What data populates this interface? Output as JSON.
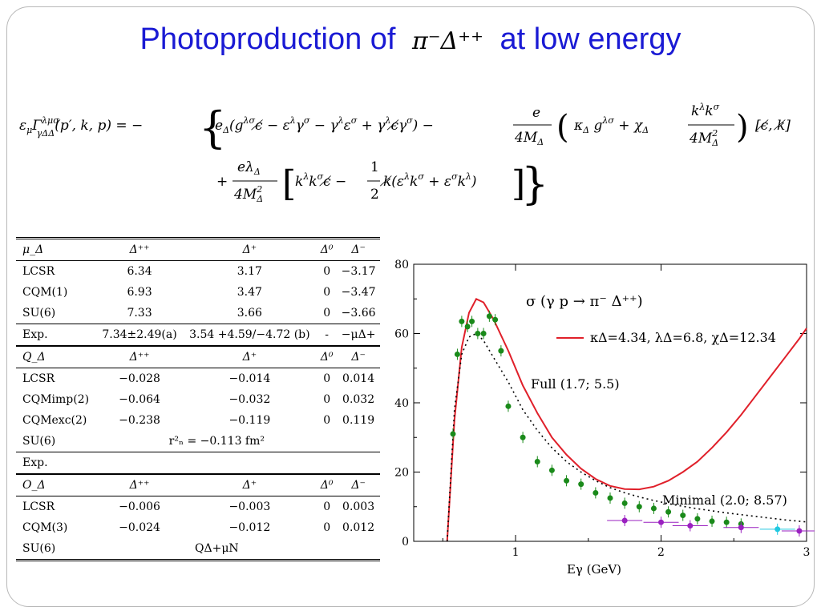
{
  "slide": {
    "title_text_before": "Photoproduction of",
    "title_math": "π⁻Δ⁺⁺",
    "title_text_after": "at low energy"
  },
  "formula": {
    "line1_lhs": "ε_μ Γ^{λμσ}_{γΔΔ}(p′, k, p) = −",
    "line1_rhs": "e_Δ(g^{λσ}ϵ̸ − ε^λ γ^σ − γ^λ ε^σ + γ^λ ϵ̸ γ^σ) − e/(4M_Δ) (κ_Δ g^{λσ} + χ_Δ k^λ k^σ/(4M_Δ²)) [ϵ̸, k̸]",
    "line2": "+ eλ_Δ/(4M_Δ²) [k^λ k^σ ϵ̸ − ½ k̸(ε^λ k^σ + ε^σ k^λ)]"
  },
  "table": {
    "sections": [
      {
        "header": [
          "μ_Δ",
          "Δ⁺⁺",
          "Δ⁺",
          "Δ⁰",
          "Δ⁻"
        ],
        "rows": [
          [
            "LCSR",
            "6.34",
            "3.17",
            "0",
            "−3.17"
          ],
          [
            "CQM(1)",
            "6.93",
            "3.47",
            "0",
            "−3.47"
          ],
          [
            "SU(6)",
            "7.33",
            "3.66",
            "0",
            "−3.66"
          ]
        ],
        "exp": [
          "Exp.",
          "7.34±2.49(a)",
          "3.54 +4.59/−4.72 (b)",
          "-",
          "−μΔ+"
        ]
      },
      {
        "header": [
          "Q_Δ",
          "Δ⁺⁺",
          "Δ⁺",
          "Δ⁰",
          "Δ⁻"
        ],
        "rows": [
          [
            "LCSR",
            "−0.028",
            "−0.014",
            "0",
            "0.014"
          ],
          [
            "CQMimp(2)",
            "−0.064",
            "−0.032",
            "0",
            "0.032"
          ],
          [
            "CQMexc(2)",
            "−0.238",
            "−0.119",
            "0",
            "0.119"
          ]
        ],
        "su6": [
          "SU(6)",
          "r²ₙ = −0.113 fm²"
        ],
        "exp": [
          "Exp."
        ]
      },
      {
        "header": [
          "O_Δ",
          "Δ⁺⁺",
          "Δ⁺",
          "Δ⁰",
          "Δ⁻"
        ],
        "rows": [
          [
            "LCSR",
            "−0.006",
            "−0.003",
            "0",
            "0.003"
          ],
          [
            "CQM(3)",
            "−0.024",
            "−0.012",
            "0",
            "0.012"
          ]
        ],
        "su6": [
          "SU(6)",
          "QΔ+μN"
        ]
      }
    ]
  },
  "chart_data": {
    "type": "line",
    "title": "σ (γ p → π⁻ Δ⁺⁺)",
    "xlabel": "Eγ (GeV)",
    "ylabel": "",
    "xlim": [
      0.3,
      3.0
    ],
    "ylim": [
      0,
      80
    ],
    "xticks": [
      "1",
      "2",
      "3"
    ],
    "yticks": [
      "0",
      "20",
      "40",
      "60",
      "80"
    ],
    "legend": "κΔ=4.34, λΔ=6.8, χΔ=12.34",
    "annotations": [
      "Full  (1.7; 5.5)",
      "Minimal (2.0; 8.57)"
    ],
    "series": [
      {
        "name": "κΔ=4.34, λΔ=6.8, χΔ=12.34",
        "style": "solid",
        "color": "#e0202a",
        "x": [
          0.53,
          0.58,
          0.63,
          0.68,
          0.73,
          0.78,
          0.85,
          0.95,
          1.05,
          1.15,
          1.25,
          1.35,
          1.45,
          1.55,
          1.65,
          1.75,
          1.85,
          1.95,
          2.05,
          2.15,
          2.25,
          2.35,
          2.45,
          2.55,
          2.65,
          2.75,
          2.85,
          2.95,
          3.0
        ],
        "y": [
          0,
          35,
          56,
          66,
          70,
          69,
          64,
          55,
          45,
          37,
          30,
          25,
          21,
          18,
          16,
          15.1,
          15,
          15.8,
          17.5,
          20,
          23,
          27,
          31.5,
          36.5,
          42,
          47.5,
          53,
          58.5,
          61.5
        ]
      },
      {
        "name": "Minimal",
        "style": "dotted",
        "color": "#000000",
        "x": [
          0.53,
          0.58,
          0.63,
          0.68,
          0.73,
          0.78,
          0.85,
          0.95,
          1.05,
          1.15,
          1.25,
          1.35,
          1.45,
          1.55,
          1.65,
          1.75,
          1.85,
          1.95,
          2.05,
          2.15,
          2.25,
          2.35,
          2.45,
          2.55,
          2.65,
          2.75,
          2.85,
          2.95,
          3.0
        ],
        "y": [
          0,
          38,
          54,
          59,
          60,
          58,
          53,
          46,
          38,
          32,
          27,
          23,
          20,
          17.5,
          15.5,
          14,
          12.8,
          11.8,
          10.9,
          10.1,
          9.4,
          8.8,
          8.2,
          7.7,
          7.2,
          6.7,
          6.2,
          5.8,
          5.6
        ]
      },
      {
        "name": "green data",
        "style": "points",
        "color": "#1a8a1a",
        "x": [
          0.57,
          0.6,
          0.63,
          0.67,
          0.7,
          0.74,
          0.78,
          0.82,
          0.86,
          0.9,
          0.95,
          1.05,
          1.15,
          1.25,
          1.35,
          1.45,
          1.55,
          1.65,
          1.75,
          1.85,
          1.95,
          2.05,
          2.15,
          2.25,
          2.35,
          2.45,
          2.55
        ],
        "y": [
          31,
          54,
          63.5,
          62,
          63.5,
          60,
          60,
          65,
          64,
          55,
          39,
          30,
          23,
          20.5,
          17.5,
          16.5,
          14,
          12.5,
          11,
          10,
          9.5,
          8.5,
          7.5,
          6.5,
          5.8,
          5.5,
          5
        ]
      },
      {
        "name": "purple data",
        "style": "points",
        "color": "#9a20c0",
        "x": [
          1.75,
          2.0,
          2.2,
          2.55,
          2.95
        ],
        "y": [
          6,
          5.5,
          4.5,
          4,
          3
        ]
      },
      {
        "name": "cyan data",
        "style": "points",
        "color": "#20c8e0",
        "x": [
          2.8
        ],
        "y": [
          3.5
        ]
      }
    ]
  }
}
